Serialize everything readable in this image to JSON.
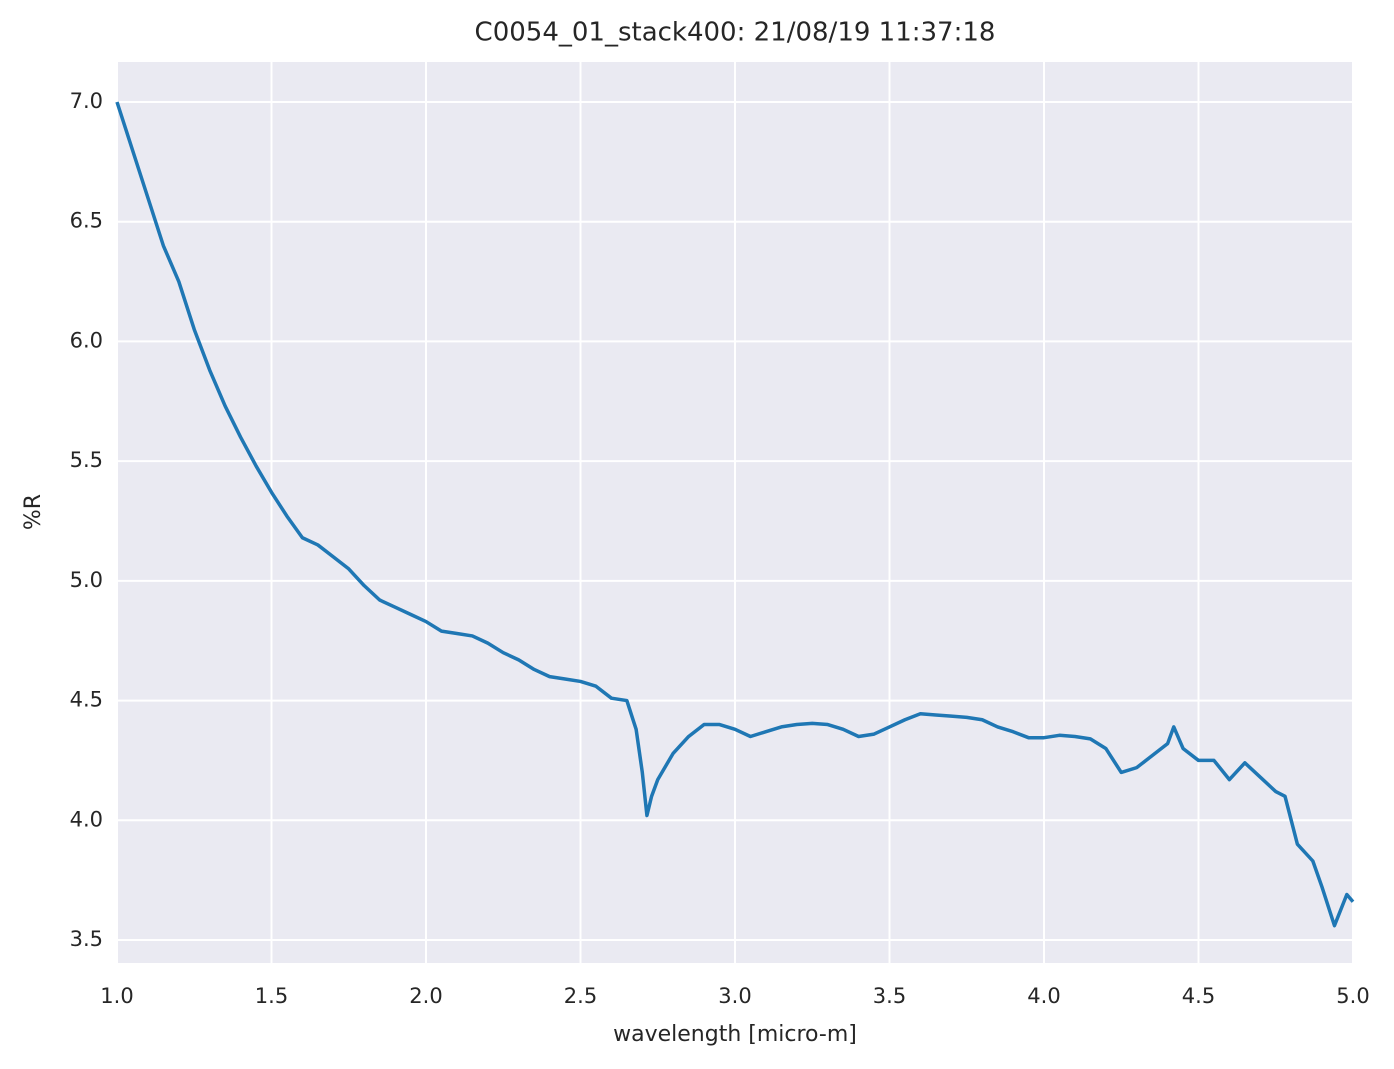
{
  "chart_data": {
    "type": "line",
    "title": "C0054_01_stack400:  21/08/19 11:37:18",
    "x_label": "wavelength [micro-m]",
    "y_label": "%R",
    "x": [
      1.0,
      1.02,
      1.05,
      1.1,
      1.15,
      1.2,
      1.25,
      1.3,
      1.35,
      1.4,
      1.45,
      1.5,
      1.55,
      1.6,
      1.65,
      1.7,
      1.75,
      1.8,
      1.85,
      1.9,
      1.95,
      2.0,
      2.05,
      2.1,
      2.15,
      2.2,
      2.25,
      2.3,
      2.35,
      2.4,
      2.45,
      2.5,
      2.55,
      2.6,
      2.65,
      2.68,
      2.7,
      2.715,
      2.73,
      2.75,
      2.8,
      2.85,
      2.9,
      2.95,
      3.0,
      3.05,
      3.1,
      3.15,
      3.2,
      3.25,
      3.3,
      3.35,
      3.4,
      3.45,
      3.5,
      3.55,
      3.6,
      3.65,
      3.7,
      3.75,
      3.8,
      3.85,
      3.9,
      3.95,
      4.0,
      4.05,
      4.1,
      4.15,
      4.2,
      4.25,
      4.3,
      4.35,
      4.4,
      4.42,
      4.45,
      4.5,
      4.55,
      4.6,
      4.65,
      4.7,
      4.75,
      4.78,
      4.82,
      4.87,
      4.9,
      4.94,
      4.98,
      5.0
    ],
    "series": [
      {
        "name": "%R",
        "color": "#1f77b4",
        "values": [
          7.0,
          6.92,
          6.8,
          6.6,
          6.4,
          6.25,
          6.05,
          5.88,
          5.73,
          5.6,
          5.48,
          5.37,
          5.27,
          5.18,
          5.15,
          5.1,
          5.05,
          4.98,
          4.92,
          4.89,
          4.86,
          4.83,
          4.79,
          4.78,
          4.77,
          4.74,
          4.7,
          4.67,
          4.63,
          4.6,
          4.59,
          4.58,
          4.56,
          4.51,
          4.5,
          4.38,
          4.2,
          4.02,
          4.1,
          4.17,
          4.28,
          4.35,
          4.4,
          4.4,
          4.38,
          4.35,
          4.37,
          4.39,
          4.4,
          4.405,
          4.4,
          4.38,
          4.35,
          4.36,
          4.39,
          4.42,
          4.445,
          4.44,
          4.435,
          4.43,
          4.42,
          4.39,
          4.37,
          4.345,
          4.345,
          4.355,
          4.35,
          4.34,
          4.3,
          4.2,
          4.22,
          4.27,
          4.32,
          4.39,
          4.3,
          4.25,
          4.25,
          4.17,
          4.24,
          4.18,
          4.12,
          4.1,
          3.9,
          3.83,
          3.72,
          3.56,
          3.69,
          3.66
        ]
      }
    ],
    "xlim": [
      1.0,
      5.0
    ],
    "ylim": [
      3.404,
      7.167
    ],
    "xticks": [
      {
        "value": 1.0,
        "label": "1.0"
      },
      1.5,
      {
        "value": 2.0,
        "label": "2.0"
      },
      2.5,
      {
        "value": 3.0,
        "label": "3.0"
      },
      3.5,
      {
        "value": 4.0,
        "label": "4.0"
      },
      4.5,
      {
        "value": 5.0,
        "label": "5.0"
      }
    ],
    "yticks": [
      3.5,
      {
        "value": 4.0,
        "label": "4.0"
      },
      4.5,
      {
        "value": 5.0,
        "label": "5.0"
      },
      5.5,
      {
        "value": 6.0,
        "label": "6.0"
      },
      6.5,
      {
        "value": 7.0,
        "label": "7.0"
      }
    ],
    "grid": true
  }
}
